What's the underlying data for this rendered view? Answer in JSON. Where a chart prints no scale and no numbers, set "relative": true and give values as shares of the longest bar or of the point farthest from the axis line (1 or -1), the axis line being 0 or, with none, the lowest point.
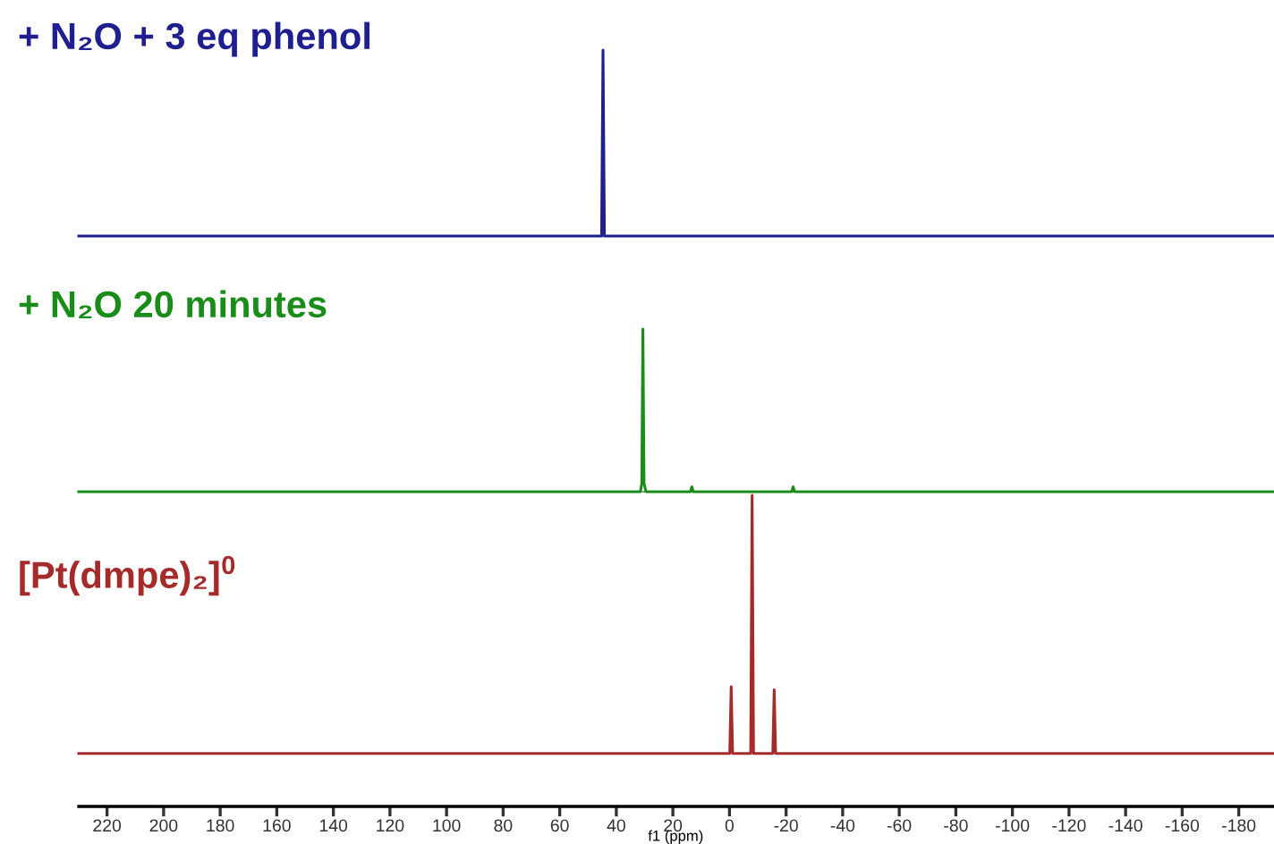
{
  "chart_data": [
    {
      "type": "line",
      "title": "+ N₂O + 3 eq phenol",
      "relative": true,
      "xlim": [
        230,
        -192
      ],
      "tick_labels": false,
      "series": [
        {
          "color": "#1f1f8f",
          "x": [
            230,
            45.2,
            44.7,
            44.2,
            -192
          ],
          "values": [
            0,
            0,
            1,
            0,
            0
          ]
        }
      ]
    },
    {
      "type": "line",
      "title": "+ N₂O 20 minutes",
      "relative": true,
      "xlim": [
        230,
        -192
      ],
      "tick_labels": false,
      "series": [
        {
          "color": "#1a8c1a",
          "x": [
            230,
            31.5,
            31.0,
            30.6,
            30.2,
            29.5,
            13.8,
            13.3,
            12.8,
            -22.0,
            -22.5,
            -23.0,
            -192
          ],
          "values": [
            0,
            0,
            0.05,
            1,
            0.05,
            0,
            0,
            0.03,
            0,
            0,
            0.03,
            0,
            0
          ]
        }
      ]
    },
    {
      "type": "line",
      "title": "[Pt(dmpe)₂]$^{0}$",
      "relative": true,
      "xlim": [
        230,
        -192
      ],
      "tick_labels": "x",
      "xlabel": "f1 (ppm)",
      "xticks": [
        220,
        200,
        180,
        160,
        140,
        120,
        100,
        80,
        60,
        40,
        20,
        0,
        -20,
        -40,
        -60,
        -80,
        -100,
        -120,
        -140,
        -160,
        -180
      ],
      "series": [
        {
          "color": "#a52a2a",
          "x": [
            230,
            -0.1,
            -0.6,
            -1.1,
            -7.5,
            -8.0,
            -8.5,
            -15.3,
            -15.8,
            -16.3,
            -192
          ],
          "values": [
            0.17,
            0.17,
            0.385,
            0.17,
            0.17,
            1,
            0.17,
            0.17,
            0.375,
            0.17,
            0.17
          ]
        }
      ]
    }
  ]
}
